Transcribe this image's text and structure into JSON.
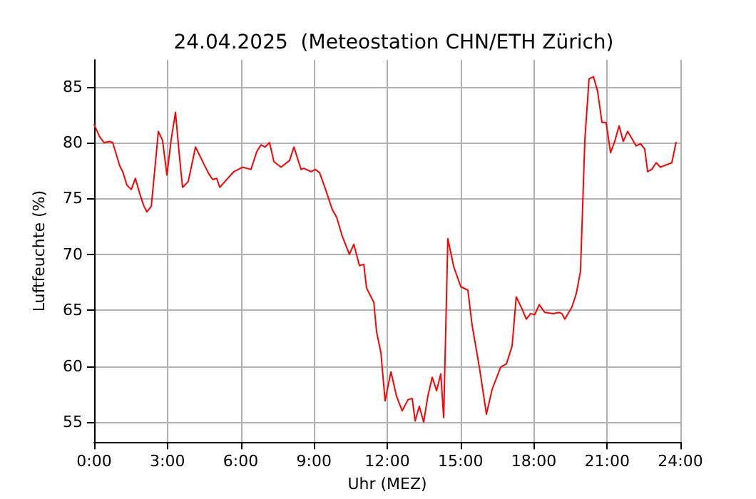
{
  "chart_data": {
    "type": "line",
    "title": "24.04.2025  (Meteostation CHN/ETH Zürich)",
    "xlabel": "Uhr (MEZ)",
    "ylabel": "Luftfeuchte (%)",
    "x": [
      0,
      0.23,
      0.4,
      0.64,
      0.76,
      1.05,
      1.17,
      1.34,
      1.52,
      1.69,
      1.87,
      2.04,
      2.16,
      2.34,
      2.63,
      2.8,
      2.98,
      3.15,
      3.33,
      3.5,
      3.62,
      3.85,
      4.15,
      4.67,
      4.85,
      5.02,
      5.14,
      5.72,
      6.07,
      6.42,
      6.66,
      6.83,
      7.0,
      7.18,
      7.36,
      7.65,
      8.0,
      8.18,
      8.47,
      8.58,
      8.88,
      9.05,
      9.23,
      9.46,
      9.75,
      9.93,
      10.16,
      10.45,
      10.63,
      10.86,
      11.04,
      11.15,
      11.45,
      11.56,
      11.74,
      11.91,
      12.15,
      12.38,
      12.61,
      12.85,
      13.02,
      13.14,
      13.31,
      13.49,
      13.66,
      13.84,
      14.02,
      14.19,
      14.31,
      14.48,
      14.72,
      15.01,
      15.3,
      15.47,
      15.77,
      16.06,
      16.29,
      16.64,
      16.88,
      17.11,
      17.28,
      17.52,
      17.69,
      17.87,
      18.04,
      18.22,
      18.45,
      18.8,
      19.04,
      19.15,
      19.27,
      19.56,
      19.74,
      19.91,
      20.09,
      20.26,
      20.44,
      20.61,
      20.79,
      20.96,
      21.14,
      21.31,
      21.49,
      21.66,
      21.84,
      22.19,
      22.37,
      22.54,
      22.66,
      22.83,
      23.01,
      23.18,
      23.65,
      23.82
    ],
    "series": [
      {
        "color": "#ff0000",
        "values": [
          81.6,
          80.5,
          80,
          80.1,
          80,
          77.9,
          77.4,
          76.2,
          75.8,
          76.8,
          75.4,
          74.3,
          73.8,
          74.3,
          81,
          80.2,
          77.1,
          80.2,
          82.7,
          78.6,
          76,
          76.5,
          79.6,
          77.3,
          76.7,
          76.8,
          76,
          77.4,
          77.8,
          77.6,
          79.2,
          79.8,
          79.6,
          80,
          78.3,
          77.8,
          78.4,
          79.6,
          77.6,
          77.7,
          77.4,
          77.6,
          77.3,
          75.9,
          74,
          73.3,
          71.6,
          70,
          70.9,
          69,
          69.1,
          67,
          65.7,
          63.1,
          61.2,
          56.9,
          59.5,
          57.3,
          56,
          57,
          57.1,
          55.1,
          56.4,
          55,
          57.3,
          59,
          57.8,
          59.3,
          55.4,
          71.4,
          68.9,
          67.1,
          66.8,
          63.7,
          59.9,
          55.7,
          57.9,
          59.9,
          60.2,
          61.8,
          66.2,
          65.1,
          64.2,
          64.7,
          64.6,
          65.5,
          64.8,
          64.7,
          64.8,
          64.7,
          64.2,
          65.3,
          66.5,
          68.5,
          80.3,
          85.7,
          85.9,
          84.6,
          81.8,
          81.8,
          79.1,
          80.1,
          81.5,
          80.1,
          81,
          79.7,
          79.9,
          79.4,
          77.4,
          77.6,
          78.2,
          77.8,
          78.2,
          80
        ]
      }
    ],
    "xlim": [
      0,
      24
    ],
    "xticks": [
      {
        "value": 0,
        "label": "0:00"
      },
      {
        "value": 3,
        "label": "3:00"
      },
      {
        "value": 6,
        "label": "6:00"
      },
      {
        "value": 9,
        "label": "9:00"
      },
      {
        "value": 12,
        "label": "12:00"
      },
      {
        "value": 15,
        "label": "15:00"
      },
      {
        "value": 18,
        "label": "18:00"
      },
      {
        "value": 21,
        "label": "21:00"
      },
      {
        "value": 24,
        "label": "24:00"
      }
    ],
    "ylim": [
      53.2,
      87.4
    ],
    "yticks": [
      55,
      60,
      65,
      70,
      75,
      80,
      85
    ],
    "grid": true,
    "marker": "none",
    "line_style": "solid"
  }
}
